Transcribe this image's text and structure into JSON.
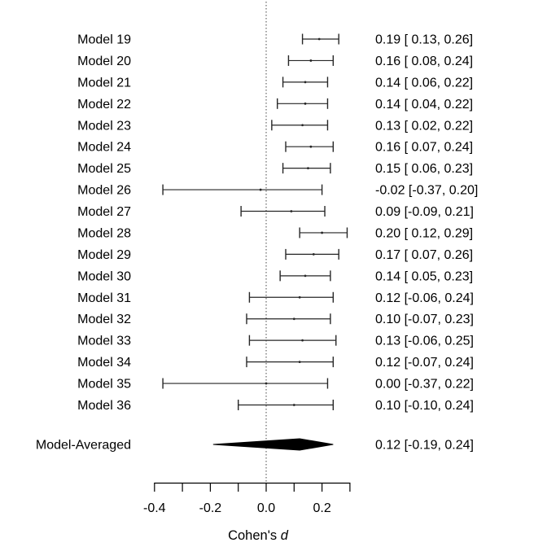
{
  "figure": {
    "background": "#ffffff",
    "text_color": "#000000",
    "line_color": "#262626",
    "reference_line_color": "#444444",
    "summary_fill": "#000000"
  },
  "chart_data": {
    "type": "forest",
    "title": "",
    "xlabel_plain": "Cohen's ",
    "xlabel_italic": "d",
    "xlim": [
      -0.4,
      0.3
    ],
    "zero_reference": 0.0,
    "grid": false,
    "legend": "none",
    "axis_ticks": [
      -0.4,
      -0.3,
      -0.2,
      -0.1,
      0.0,
      0.1,
      0.2,
      0.3
    ],
    "axis_tick_labels": [
      {
        "value": -0.4,
        "label": "-0.4"
      },
      {
        "value": -0.2,
        "label": "-0.2"
      },
      {
        "value": 0.0,
        "label": "0.0"
      },
      {
        "value": 0.2,
        "label": "0.2"
      }
    ],
    "rows": [
      {
        "label": "Model 19",
        "est": 0.19,
        "lo": 0.13,
        "hi": 0.26,
        "annotation": "0.19 [ 0.13, 0.26]"
      },
      {
        "label": "Model 20",
        "est": 0.16,
        "lo": 0.08,
        "hi": 0.24,
        "annotation": "0.16 [ 0.08, 0.24]"
      },
      {
        "label": "Model 21",
        "est": 0.14,
        "lo": 0.06,
        "hi": 0.22,
        "annotation": "0.14 [ 0.06, 0.22]"
      },
      {
        "label": "Model 22",
        "est": 0.14,
        "lo": 0.04,
        "hi": 0.22,
        "annotation": "0.14 [ 0.04, 0.22]"
      },
      {
        "label": "Model 23",
        "est": 0.13,
        "lo": 0.02,
        "hi": 0.22,
        "annotation": "0.13 [ 0.02, 0.22]"
      },
      {
        "label": "Model 24",
        "est": 0.16,
        "lo": 0.07,
        "hi": 0.24,
        "annotation": "0.16 [ 0.07, 0.24]"
      },
      {
        "label": "Model 25",
        "est": 0.15,
        "lo": 0.06,
        "hi": 0.23,
        "annotation": "0.15 [ 0.06, 0.23]"
      },
      {
        "label": "Model 26",
        "est": -0.02,
        "lo": -0.37,
        "hi": 0.2,
        "annotation": "-0.02 [-0.37, 0.20]"
      },
      {
        "label": "Model 27",
        "est": 0.09,
        "lo": -0.09,
        "hi": 0.21,
        "annotation": "0.09 [-0.09, 0.21]"
      },
      {
        "label": "Model 28",
        "est": 0.2,
        "lo": 0.12,
        "hi": 0.29,
        "annotation": "0.20 [ 0.12, 0.29]"
      },
      {
        "label": "Model 29",
        "est": 0.17,
        "lo": 0.07,
        "hi": 0.26,
        "annotation": "0.17 [ 0.07, 0.26]"
      },
      {
        "label": "Model 30",
        "est": 0.14,
        "lo": 0.05,
        "hi": 0.23,
        "annotation": "0.14 [ 0.05, 0.23]"
      },
      {
        "label": "Model 31",
        "est": 0.12,
        "lo": -0.06,
        "hi": 0.24,
        "annotation": "0.12 [-0.06, 0.24]"
      },
      {
        "label": "Model 32",
        "est": 0.1,
        "lo": -0.07,
        "hi": 0.23,
        "annotation": "0.10 [-0.07, 0.23]"
      },
      {
        "label": "Model 33",
        "est": 0.13,
        "lo": -0.06,
        "hi": 0.25,
        "annotation": "0.13 [-0.06, 0.25]"
      },
      {
        "label": "Model 34",
        "est": 0.12,
        "lo": -0.07,
        "hi": 0.24,
        "annotation": "0.12 [-0.07, 0.24]"
      },
      {
        "label": "Model 35",
        "est": 0.0,
        "lo": -0.37,
        "hi": 0.22,
        "annotation": "0.00 [-0.37, 0.22]"
      },
      {
        "label": "Model 36",
        "est": 0.1,
        "lo": -0.1,
        "hi": 0.24,
        "annotation": "0.10 [-0.10, 0.24]"
      }
    ],
    "summary": {
      "label": "Model-Averaged",
      "est": 0.12,
      "lo": -0.19,
      "hi": 0.24,
      "annotation": "0.12 [-0.19, 0.24]"
    }
  }
}
